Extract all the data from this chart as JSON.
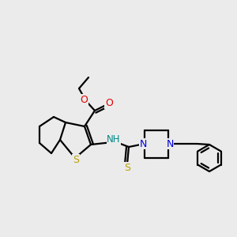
{
  "bg_color": "#ebebeb",
  "atom_colors": {
    "S": "#b8a000",
    "N": "#0000e0",
    "O": "#e00000",
    "NH": "#008888",
    "C": "#000000"
  },
  "bond_color": "#000000",
  "bond_width": 1.6,
  "figsize": [
    3.0,
    3.0
  ],
  "dpi": 100
}
